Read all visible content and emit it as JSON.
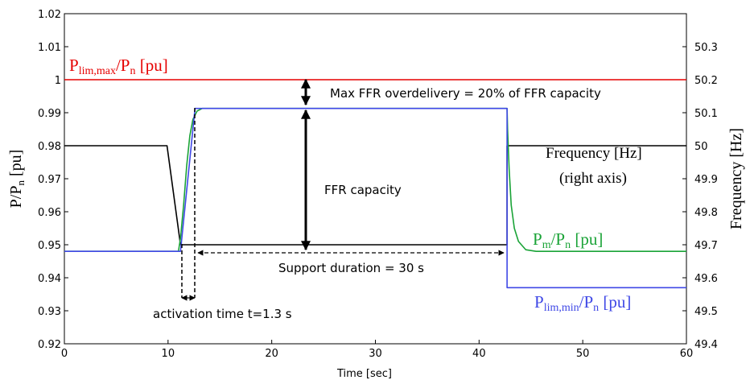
{
  "chart_data": {
    "type": "line",
    "xlabel": "Time  [sec]",
    "ylabel_left": "P/Pₙ [pu]",
    "ylabel_right": "Frequency [Hz]",
    "xlim": [
      0,
      60
    ],
    "ylim_left": [
      0.92,
      1.02
    ],
    "ylim_right": [
      49.4,
      50.4
    ],
    "x_ticks": [
      "0",
      "10",
      "20",
      "30",
      "40",
      "50",
      "60"
    ],
    "y_left_ticks": [
      "0.92",
      "0.93",
      "0.94",
      "0.95",
      "0.96",
      "0.97",
      "0.98",
      "0.99",
      "1",
      "1.01",
      "1.02"
    ],
    "y_right_ticks": [
      "49.4",
      "49.5",
      "49.6",
      "49.7",
      "49.8",
      "49.9",
      "50",
      "50.1",
      "50.2",
      "50.3"
    ],
    "grid": false,
    "series": [
      {
        "name": "P_lim,max/P_n [pu]",
        "color": "#e60000",
        "axis": "left",
        "points": [
          [
            0,
            1.0
          ],
          [
            60,
            1.0
          ]
        ]
      },
      {
        "name": "Frequency [Hz] (right axis)",
        "color": "#000000",
        "axis": "right",
        "points": [
          [
            0,
            50.0
          ],
          [
            9.9,
            50.0
          ],
          [
            11.2,
            49.7
          ],
          [
            42.7,
            49.7
          ],
          [
            42.7,
            50.0
          ],
          [
            60,
            50.0
          ]
        ]
      },
      {
        "name": "P_m/P_n [pu]",
        "color": "#1aa337",
        "axis": "left",
        "points": [
          [
            0,
            0.948
          ],
          [
            11.0,
            0.948
          ],
          [
            11.2,
            0.952
          ],
          [
            11.5,
            0.962
          ],
          [
            11.8,
            0.974
          ],
          [
            12.1,
            0.983
          ],
          [
            12.4,
            0.988
          ],
          [
            12.8,
            0.9905
          ],
          [
            13.3,
            0.9913
          ],
          [
            42.7,
            0.9913
          ],
          [
            42.75,
            0.985
          ],
          [
            42.9,
            0.973
          ],
          [
            43.1,
            0.962
          ],
          [
            43.4,
            0.955
          ],
          [
            43.8,
            0.951
          ],
          [
            44.5,
            0.9485
          ],
          [
            45.5,
            0.948
          ],
          [
            60,
            0.948
          ]
        ]
      },
      {
        "name": "P_lim,min/P_n [pu]",
        "color": "#3f48e6",
        "axis": "left",
        "points": [
          [
            0,
            0.948
          ],
          [
            11.2,
            0.948
          ],
          [
            12.6,
            0.9913
          ],
          [
            42.7,
            0.9913
          ],
          [
            42.7,
            0.937
          ],
          [
            60,
            0.937
          ]
        ]
      }
    ],
    "annotations": {
      "plim_max": "P_lim,max/P_n [pu]",
      "overdelivery": "Max FFR overdelivery = 20% of FFR capacity",
      "capacity": "FFR capacity",
      "frequency_1": "Frequency [Hz]",
      "frequency_2": "(right axis)",
      "pm": "P_m/P_n [pu]",
      "support": "Support duration = 30 s",
      "plim_min": "P_lim,min/P_n [pu]",
      "activation": "activation time t=1.3 s"
    }
  }
}
